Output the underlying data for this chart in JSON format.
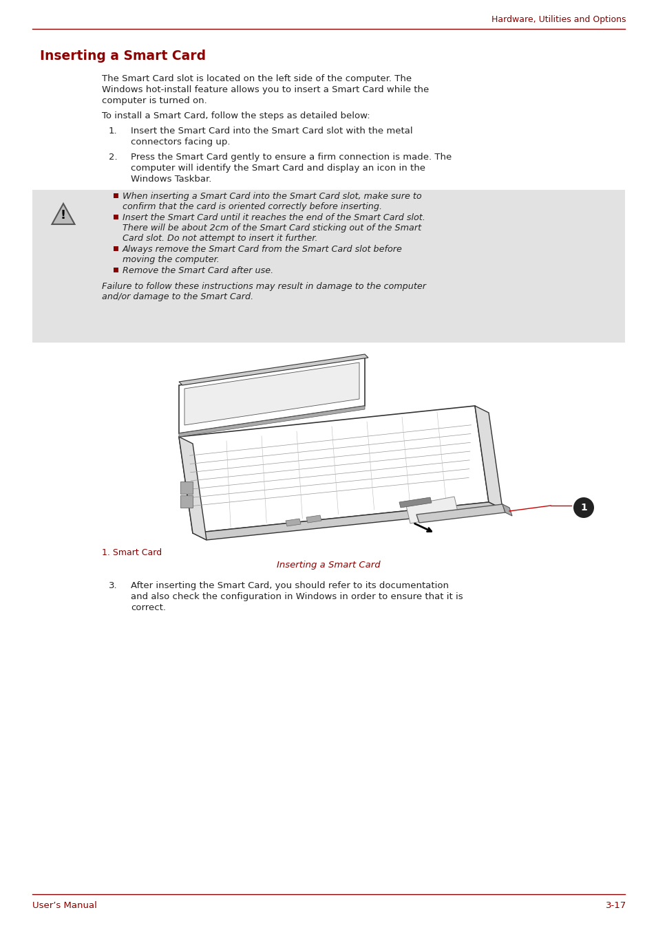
{
  "page_header_right": "Hardware, Utilities and Options",
  "section_title": "Inserting a Smart Card",
  "body_text_1a": "The Smart Card slot is located on the left side of the computer. The",
  "body_text_1b": "Windows hot-install feature allows you to insert a Smart Card while the",
  "body_text_1c": "computer is turned on.",
  "body_text_2": "To install a Smart Card, follow the steps as detailed below:",
  "step1_num": "1.",
  "step1_line1": "Insert the Smart Card into the Smart Card slot with the metal",
  "step1_line2": "connectors facing up.",
  "step2_num": "2.",
  "step2_line1": "Press the Smart Card gently to ensure a firm connection is made. The",
  "step2_line2": "computer will identify the Smart Card and display an icon in the",
  "step2_line3": "Windows Taskbar.",
  "warn_b1_l1": "When inserting a Smart Card into the Smart Card slot, make sure to",
  "warn_b1_l2": "confirm that the card is oriented correctly before inserting.",
  "warn_b2_l1": "Insert the Smart Card until it reaches the end of the Smart Card slot.",
  "warn_b2_l2": "There will be about 2cm of the Smart Card sticking out of the Smart",
  "warn_b2_l3": "Card slot. Do not attempt to insert it further.",
  "warn_b3_l1": "Always remove the Smart Card from the Smart Card slot before",
  "warn_b3_l2": "moving the computer.",
  "warn_b4_l1": "Remove the Smart Card after use.",
  "warn_foot1": "Failure to follow these instructions may result in damage to the computer",
  "warn_foot2": "and/or damage to the Smart Card.",
  "fig_label": "1. Smart Card",
  "fig_caption": "Inserting a Smart Card",
  "step3_num": "3.",
  "step3_line1": "After inserting the Smart Card, you should refer to its documentation",
  "step3_line2": "and also check the configuration in Windows in order to ensure that it is",
  "step3_line3": "correct.",
  "footer_left": "User’s Manual",
  "footer_right": "3-17",
  "RED": "#8B0000",
  "BLACK": "#222222",
  "WARN_BG": "#e2e2e2",
  "WHITE": "#ffffff"
}
